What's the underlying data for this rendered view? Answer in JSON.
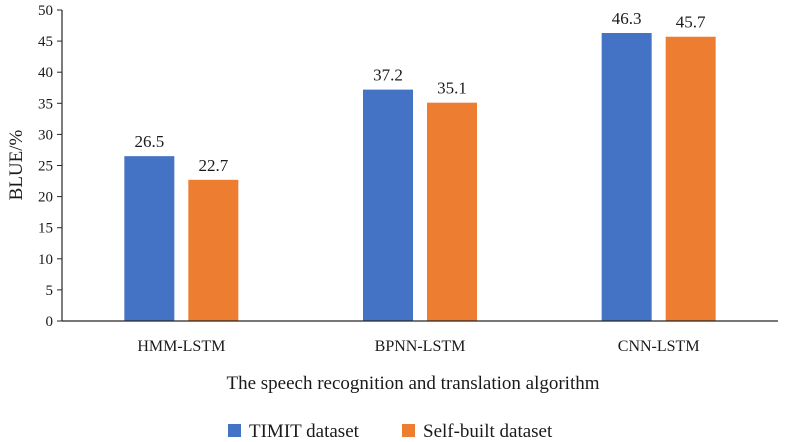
{
  "chart_data": {
    "type": "bar",
    "categories": [
      "HMM-LSTM",
      "BPNN-LSTM",
      "CNN-LSTM"
    ],
    "series": [
      {
        "name": "TIMIT dataset",
        "values": [
          26.5,
          37.2,
          46.3
        ],
        "color": "#4472C4"
      },
      {
        "name": "Self-built dataset",
        "values": [
          22.7,
          35.1,
          45.7
        ],
        "color": "#ED7D31"
      }
    ],
    "data_labels": [
      [
        "26.5",
        "37.2",
        "46.3"
      ],
      [
        "22.7",
        "35.1",
        "45.7"
      ]
    ],
    "title": "",
    "xlabel": "The speech recognition and translation algorithm",
    "ylabel": "BLUE/%",
    "ylim": [
      0,
      50
    ],
    "yticks": [
      0,
      5,
      10,
      15,
      20,
      25,
      30,
      35,
      40,
      45,
      50
    ],
    "grid": false,
    "legend_position": "bottom"
  }
}
